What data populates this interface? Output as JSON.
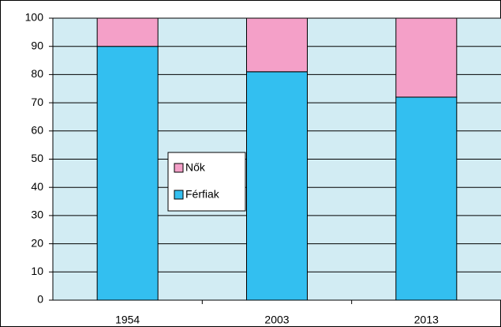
{
  "chart_data": {
    "type": "stacked_bar",
    "categories": [
      "1954",
      "2003",
      "2013"
    ],
    "series": [
      {
        "name": "Férfiak",
        "color": "#33bff0",
        "values": [
          90,
          81,
          72
        ]
      },
      {
        "name": "Nők",
        "color": "#f4a0c8",
        "values": [
          10,
          19,
          28
        ]
      }
    ],
    "ylim": [
      0,
      100
    ],
    "yticks": [
      0,
      10,
      20,
      30,
      40,
      50,
      60,
      70,
      80,
      90,
      100
    ],
    "grid": true
  }
}
